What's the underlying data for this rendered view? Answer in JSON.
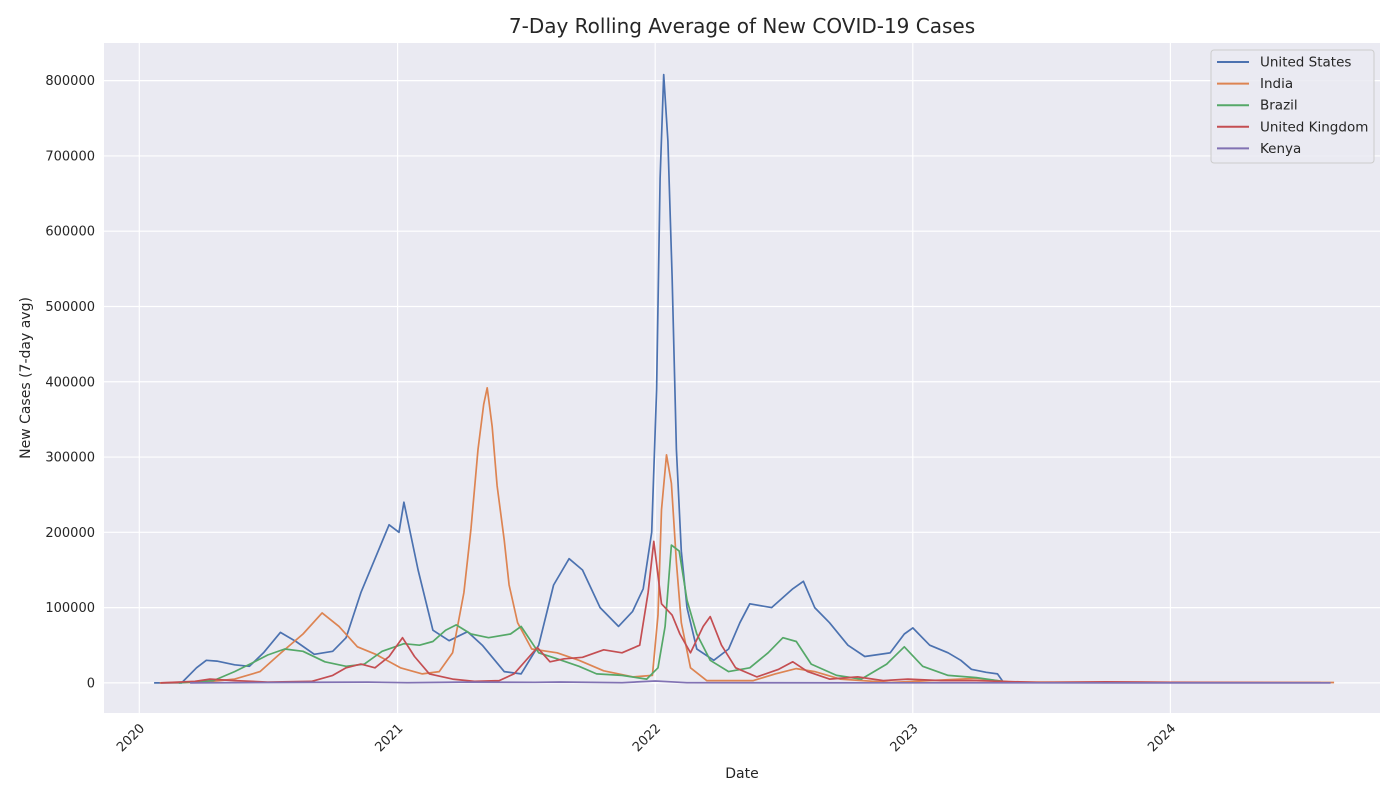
{
  "chart_data": {
    "type": "line",
    "title": "7-Day Rolling Average of New COVID-19 Cases",
    "xlabel": "Date",
    "ylabel": "New Cases (7-day avg)",
    "x_range": [
      "2019-11-12",
      "2024-10-24"
    ],
    "ylim": [
      -40000,
      850000
    ],
    "x_ticks": [
      "2020-01-01",
      "2021-01-01",
      "2022-01-01",
      "2023-01-01",
      "2024-01-01"
    ],
    "x_tick_labels": [
      "2020",
      "2021",
      "2022",
      "2023",
      "2024"
    ],
    "y_ticks": [
      0,
      100000,
      200000,
      300000,
      400000,
      500000,
      600000,
      700000,
      800000
    ],
    "y_tick_labels": [
      "0",
      "100000",
      "200000",
      "300000",
      "400000",
      "500000",
      "600000",
      "700000",
      "800000"
    ],
    "grid": true,
    "background": "#eaeaf2",
    "legend_position": "top-right",
    "series": [
      {
        "name": "United States",
        "color": "#4c72b0",
        "points": [
          [
            "2020-01-22",
            0
          ],
          [
            "2020-03-01",
            0
          ],
          [
            "2020-03-22",
            20000
          ],
          [
            "2020-04-05",
            30000
          ],
          [
            "2020-04-20",
            29000
          ],
          [
            "2020-05-15",
            24000
          ],
          [
            "2020-06-05",
            22000
          ],
          [
            "2020-06-25",
            40000
          ],
          [
            "2020-07-19",
            67000
          ],
          [
            "2020-08-10",
            55000
          ],
          [
            "2020-09-05",
            38000
          ],
          [
            "2020-10-01",
            42000
          ],
          [
            "2020-10-20",
            60000
          ],
          [
            "2020-11-10",
            120000
          ],
          [
            "2020-11-30",
            165000
          ],
          [
            "2020-12-20",
            210000
          ],
          [
            "2021-01-03",
            200000
          ],
          [
            "2021-01-10",
            240000
          ],
          [
            "2021-01-30",
            150000
          ],
          [
            "2021-02-20",
            70000
          ],
          [
            "2021-03-15",
            56000
          ],
          [
            "2021-04-10",
            68000
          ],
          [
            "2021-05-01",
            50000
          ],
          [
            "2021-06-01",
            15000
          ],
          [
            "2021-06-25",
            12000
          ],
          [
            "2021-07-20",
            50000
          ],
          [
            "2021-08-10",
            130000
          ],
          [
            "2021-09-01",
            165000
          ],
          [
            "2021-09-20",
            150000
          ],
          [
            "2021-10-15",
            100000
          ],
          [
            "2021-11-10",
            75000
          ],
          [
            "2021-11-30",
            95000
          ],
          [
            "2021-12-15",
            125000
          ],
          [
            "2021-12-27",
            200000
          ],
          [
            "2022-01-03",
            390000
          ],
          [
            "2022-01-08",
            670000
          ],
          [
            "2022-01-13",
            808000
          ],
          [
            "2022-01-19",
            720000
          ],
          [
            "2022-01-25",
            540000
          ],
          [
            "2022-01-31",
            310000
          ],
          [
            "2022-02-07",
            175000
          ],
          [
            "2022-02-15",
            100000
          ],
          [
            "2022-03-01",
            45000
          ],
          [
            "2022-03-25",
            30000
          ],
          [
            "2022-04-15",
            45000
          ],
          [
            "2022-05-01",
            80000
          ],
          [
            "2022-05-15",
            105000
          ],
          [
            "2022-06-15",
            100000
          ],
          [
            "2022-07-15",
            125000
          ],
          [
            "2022-07-30",
            135000
          ],
          [
            "2022-08-15",
            100000
          ],
          [
            "2022-09-05",
            80000
          ],
          [
            "2022-10-01",
            50000
          ],
          [
            "2022-10-25",
            35000
          ],
          [
            "2022-11-30",
            40000
          ],
          [
            "2022-12-20",
            65000
          ],
          [
            "2023-01-01",
            73000
          ],
          [
            "2023-01-25",
            50000
          ],
          [
            "2023-02-20",
            40000
          ],
          [
            "2023-03-10",
            30000
          ],
          [
            "2023-03-25",
            18000
          ],
          [
            "2023-04-15",
            14000
          ],
          [
            "2023-05-01",
            12000
          ],
          [
            "2023-05-10",
            0
          ]
        ]
      },
      {
        "name": "India",
        "color": "#dd8452",
        "points": [
          [
            "2020-01-30",
            0
          ],
          [
            "2020-04-01",
            1000
          ],
          [
            "2020-05-15",
            5000
          ],
          [
            "2020-06-20",
            15000
          ],
          [
            "2020-07-20",
            40000
          ],
          [
            "2020-08-20",
            65000
          ],
          [
            "2020-09-16",
            93000
          ],
          [
            "2020-10-10",
            75000
          ],
          [
            "2020-11-05",
            48000
          ],
          [
            "2020-12-01",
            38000
          ],
          [
            "2021-01-05",
            20000
          ],
          [
            "2021-02-05",
            12000
          ],
          [
            "2021-03-01",
            15000
          ],
          [
            "2021-03-20",
            40000
          ],
          [
            "2021-04-05",
            120000
          ],
          [
            "2021-04-15",
            205000
          ],
          [
            "2021-04-25",
            310000
          ],
          [
            "2021-05-03",
            370000
          ],
          [
            "2021-05-08",
            392000
          ],
          [
            "2021-05-15",
            340000
          ],
          [
            "2021-05-22",
            262000
          ],
          [
            "2021-06-01",
            190000
          ],
          [
            "2021-06-08",
            130000
          ],
          [
            "2021-06-20",
            80000
          ],
          [
            "2021-07-10",
            45000
          ],
          [
            "2021-08-15",
            40000
          ],
          [
            "2021-09-15",
            30000
          ],
          [
            "2021-10-20",
            16000
          ],
          [
            "2021-12-01",
            8000
          ],
          [
            "2021-12-28",
            10000
          ],
          [
            "2022-01-05",
            90000
          ],
          [
            "2022-01-10",
            230000
          ],
          [
            "2022-01-17",
            303000
          ],
          [
            "2022-01-24",
            265000
          ],
          [
            "2022-01-31",
            160000
          ],
          [
            "2022-02-07",
            80000
          ],
          [
            "2022-02-20",
            20000
          ],
          [
            "2022-03-15",
            3000
          ],
          [
            "2022-05-20",
            3000
          ],
          [
            "2022-06-20",
            12000
          ],
          [
            "2022-07-20",
            19000
          ],
          [
            "2022-08-15",
            15000
          ],
          [
            "2022-09-20",
            5000
          ],
          [
            "2022-12-01",
            500
          ],
          [
            "2023-04-01",
            6000
          ],
          [
            "2023-05-20",
            1000
          ],
          [
            "2024-08-20",
            500
          ]
        ]
      },
      {
        "name": "Brazil",
        "color": "#55a868",
        "points": [
          [
            "2020-02-26",
            0
          ],
          [
            "2020-04-15",
            3000
          ],
          [
            "2020-05-15",
            15000
          ],
          [
            "2020-06-10",
            27000
          ],
          [
            "2020-07-01",
            37000
          ],
          [
            "2020-07-25",
            45000
          ],
          [
            "2020-08-20",
            42000
          ],
          [
            "2020-09-20",
            28000
          ],
          [
            "2020-10-20",
            22000
          ],
          [
            "2020-11-15",
            25000
          ],
          [
            "2020-12-10",
            42000
          ],
          [
            "2021-01-10",
            52000
          ],
          [
            "2021-02-01",
            50000
          ],
          [
            "2021-02-20",
            55000
          ],
          [
            "2021-03-10",
            70000
          ],
          [
            "2021-03-25",
            77000
          ],
          [
            "2021-04-15",
            65000
          ],
          [
            "2021-05-10",
            60000
          ],
          [
            "2021-06-10",
            65000
          ],
          [
            "2021-06-25",
            75000
          ],
          [
            "2021-07-20",
            40000
          ],
          [
            "2021-08-15",
            32000
          ],
          [
            "2021-09-15",
            22000
          ],
          [
            "2021-10-10",
            12000
          ],
          [
            "2021-11-15",
            10000
          ],
          [
            "2021-12-20",
            5000
          ],
          [
            "2022-01-05",
            20000
          ],
          [
            "2022-01-15",
            75000
          ],
          [
            "2022-01-24",
            183000
          ],
          [
            "2022-02-04",
            175000
          ],
          [
            "2022-02-15",
            110000
          ],
          [
            "2022-03-01",
            65000
          ],
          [
            "2022-03-20",
            30000
          ],
          [
            "2022-04-15",
            15000
          ],
          [
            "2022-05-15",
            20000
          ],
          [
            "2022-06-10",
            40000
          ],
          [
            "2022-07-01",
            60000
          ],
          [
            "2022-07-20",
            55000
          ],
          [
            "2022-08-10",
            25000
          ],
          [
            "2022-09-15",
            10000
          ],
          [
            "2022-10-20",
            5000
          ],
          [
            "2022-11-25",
            25000
          ],
          [
            "2022-12-20",
            48000
          ],
          [
            "2023-01-15",
            22000
          ],
          [
            "2023-02-20",
            10000
          ],
          [
            "2023-04-01",
            7000
          ],
          [
            "2023-05-15",
            1000
          ]
        ]
      },
      {
        "name": "United Kingdom",
        "color": "#c44e52",
        "points": [
          [
            "2020-01-31",
            0
          ],
          [
            "2020-03-20",
            2000
          ],
          [
            "2020-04-10",
            5000
          ],
          [
            "2020-05-15",
            3000
          ],
          [
            "2020-07-01",
            1000
          ],
          [
            "2020-09-01",
            2000
          ],
          [
            "2020-10-01",
            10000
          ],
          [
            "2020-10-20",
            20000
          ],
          [
            "2020-11-10",
            25000
          ],
          [
            "2020-11-30",
            20000
          ],
          [
            "2020-12-20",
            35000
          ],
          [
            "2021-01-08",
            60000
          ],
          [
            "2021-01-25",
            35000
          ],
          [
            "2021-02-15",
            12000
          ],
          [
            "2021-03-20",
            5000
          ],
          [
            "2021-04-20",
            2000
          ],
          [
            "2021-05-25",
            3000
          ],
          [
            "2021-06-15",
            12000
          ],
          [
            "2021-07-18",
            47000
          ],
          [
            "2021-08-05",
            28000
          ],
          [
            "2021-08-25",
            32000
          ],
          [
            "2021-09-20",
            34000
          ],
          [
            "2021-10-20",
            44000
          ],
          [
            "2021-11-15",
            40000
          ],
          [
            "2021-12-10",
            50000
          ],
          [
            "2021-12-22",
            120000
          ],
          [
            "2021-12-30",
            188000
          ],
          [
            "2022-01-10",
            105000
          ],
          [
            "2022-01-25",
            90000
          ],
          [
            "2022-02-05",
            65000
          ],
          [
            "2022-02-20",
            40000
          ],
          [
            "2022-03-10",
            75000
          ],
          [
            "2022-03-20",
            88000
          ],
          [
            "2022-04-05",
            50000
          ],
          [
            "2022-04-25",
            20000
          ],
          [
            "2022-05-25",
            8000
          ],
          [
            "2022-06-25",
            18000
          ],
          [
            "2022-07-15",
            28000
          ],
          [
            "2022-08-05",
            15000
          ],
          [
            "2022-09-05",
            5000
          ],
          [
            "2022-10-15",
            8000
          ],
          [
            "2022-11-20",
            3000
          ],
          [
            "2022-12-25",
            5000
          ],
          [
            "2023-02-10",
            3000
          ],
          [
            "2023-04-01",
            3000
          ],
          [
            "2023-07-01",
            500
          ],
          [
            "2023-10-01",
            1500
          ],
          [
            "2024-01-01",
            800
          ],
          [
            "2024-08-01",
            300
          ]
        ]
      },
      {
        "name": "Kenya",
        "color": "#8172b3",
        "points": [
          [
            "2020-03-13",
            0
          ],
          [
            "2020-08-01",
            600
          ],
          [
            "2020-11-20",
            1100
          ],
          [
            "2021-01-15",
            200
          ],
          [
            "2021-03-30",
            1000
          ],
          [
            "2021-07-15",
            800
          ],
          [
            "2021-08-20",
            1200
          ],
          [
            "2021-11-15",
            200
          ],
          [
            "2022-01-01",
            2500
          ],
          [
            "2022-02-15",
            200
          ],
          [
            "2023-01-01",
            100
          ],
          [
            "2024-08-15",
            0
          ]
        ]
      }
    ]
  }
}
